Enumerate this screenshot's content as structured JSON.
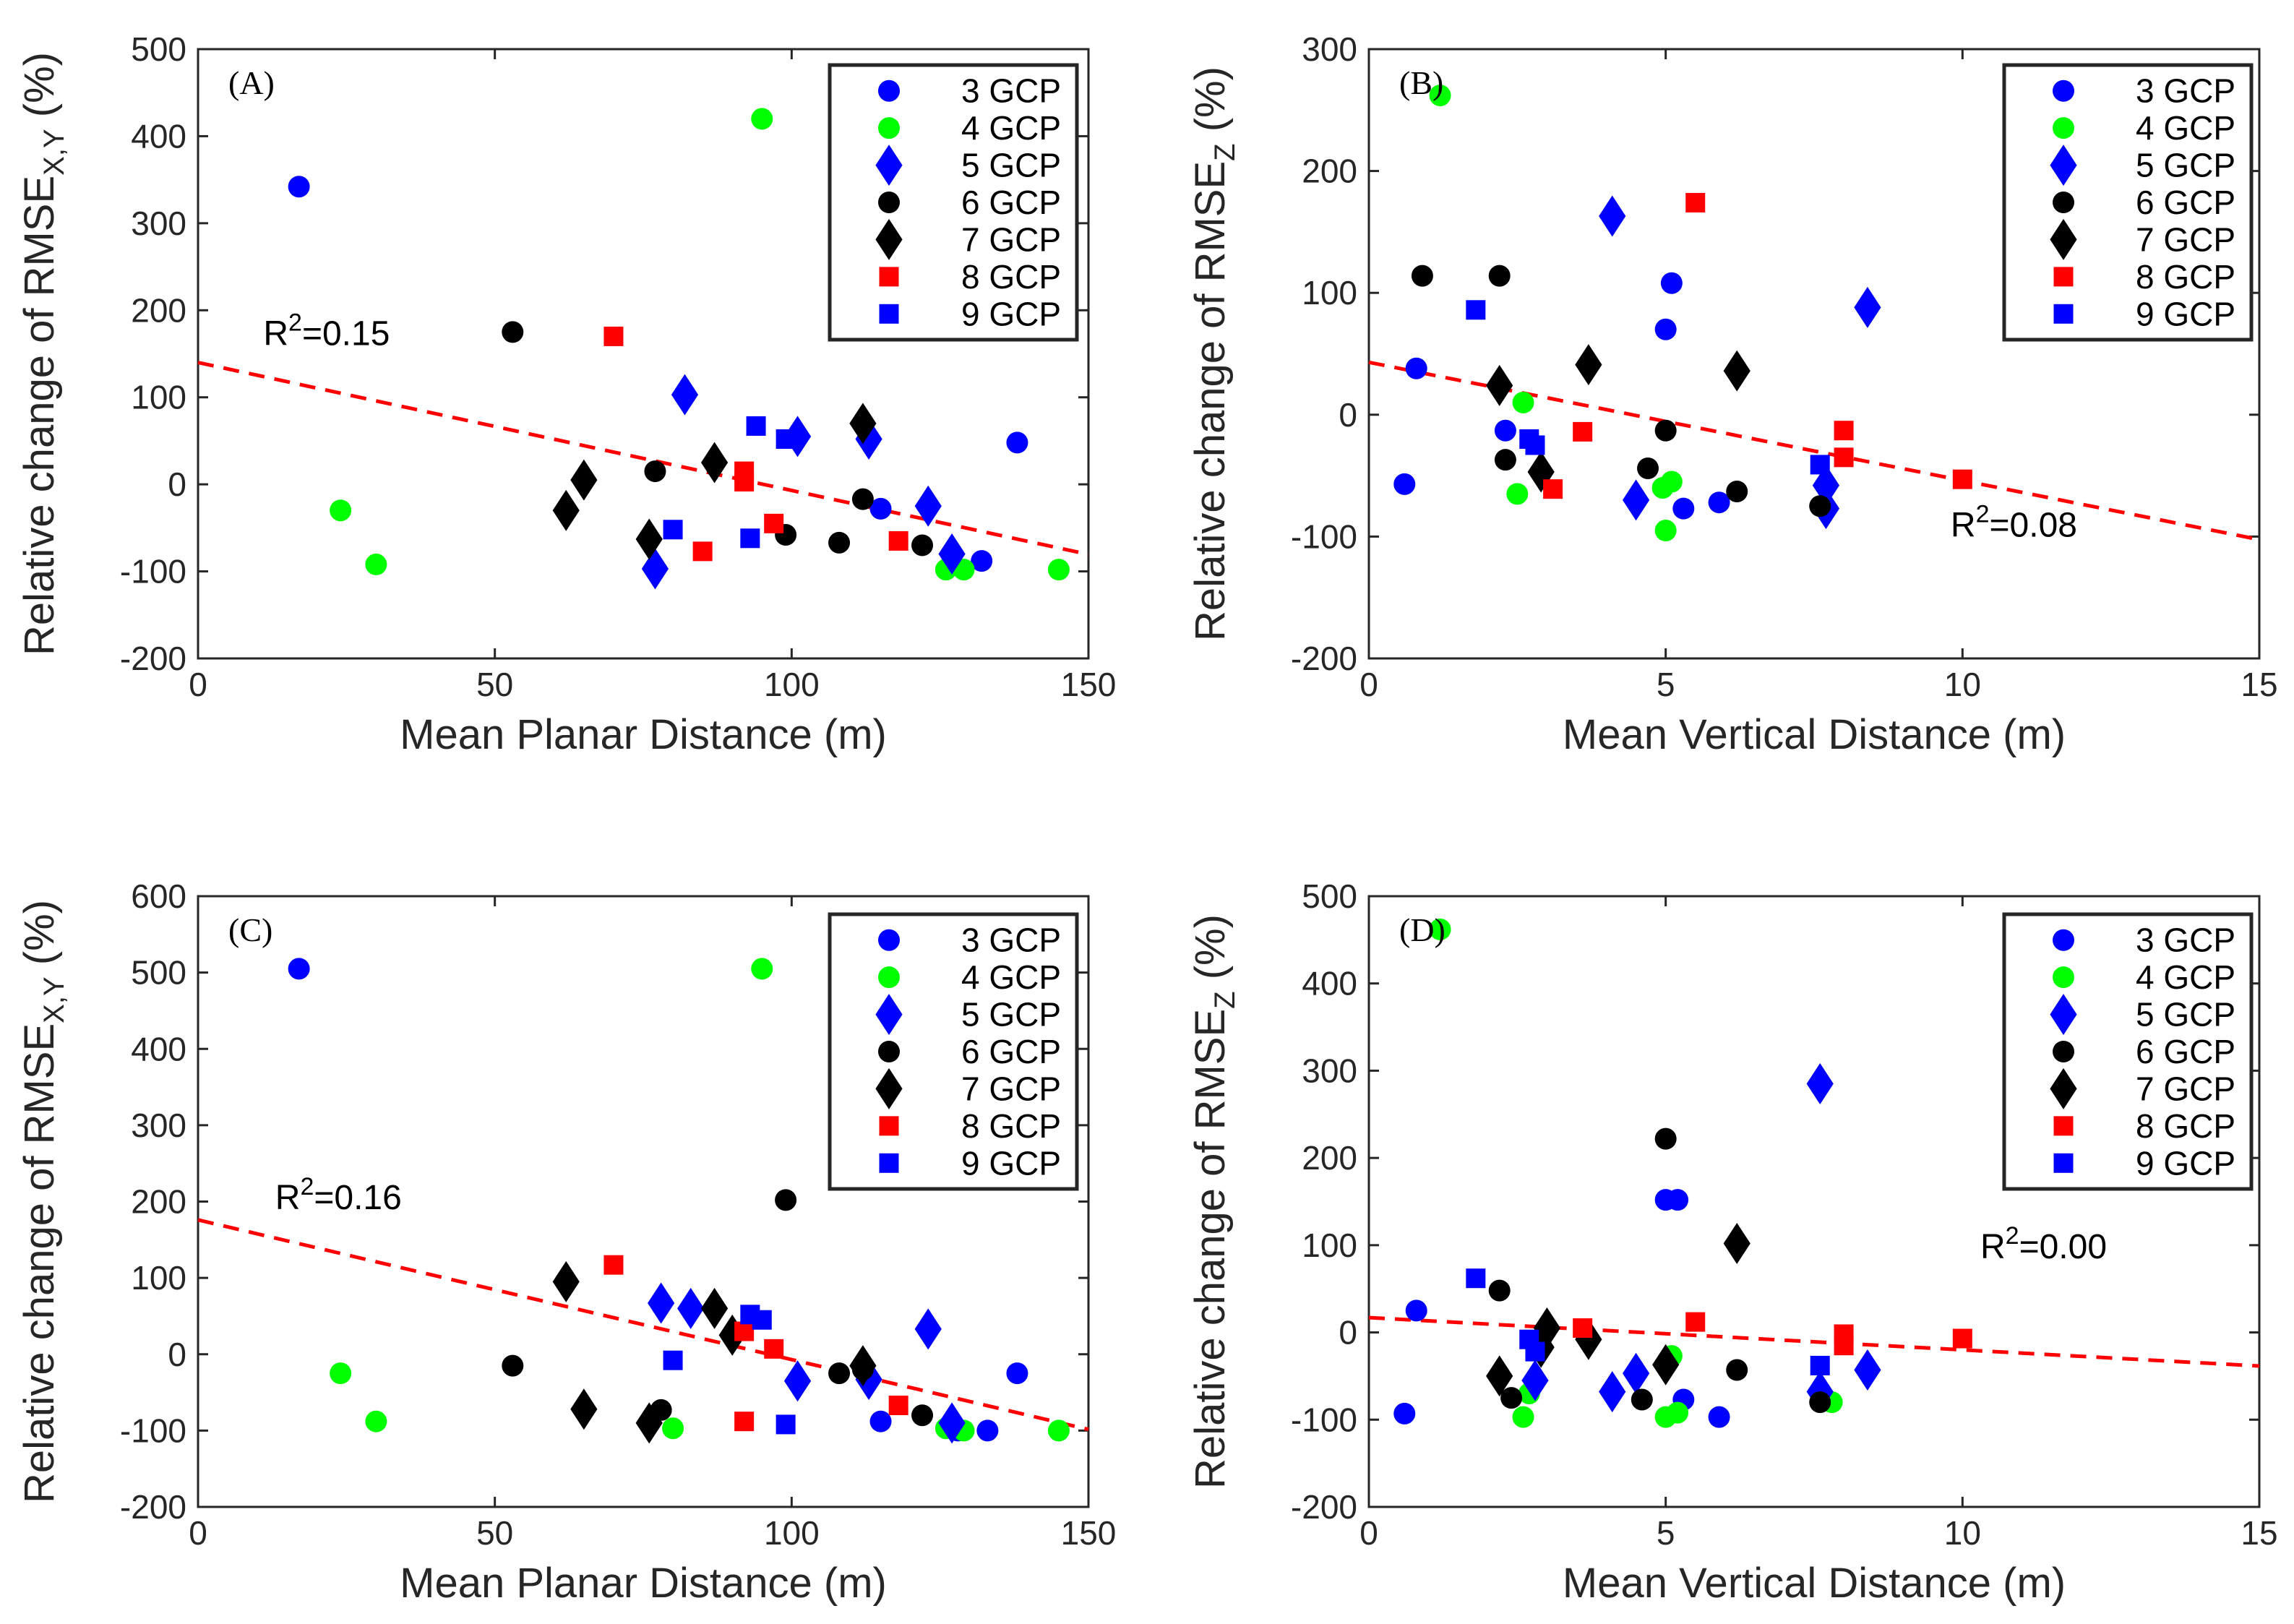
{
  "chart_data": [
    {
      "type": "scatter",
      "panel_label": "(A)",
      "xlabel": "Mean Planar Distance (m)",
      "ylabel_main": "Relative change of RMSE",
      "ylabel_sub": "X,Y",
      "ylabel_tail": " (%)",
      "xlim": [
        0,
        150
      ],
      "ylim": [
        -200,
        500
      ],
      "xticks": [
        0,
        50,
        100,
        150
      ],
      "yticks": [
        -200,
        -100,
        0,
        100,
        200,
        300,
        400,
        500
      ],
      "fit": {
        "slope": -1.47,
        "intercept": 140
      },
      "r2_label": "R",
      "r2_sup": "2",
      "r2_value": "=0.15",
      "r2_pos": [
        11,
        160
      ],
      "series": [
        {
          "name": "3 GCP",
          "marker": "circle",
          "color": "#0000ff",
          "points": [
            [
              17,
              342
            ],
            [
              115,
              -28
            ],
            [
              138,
              48
            ],
            [
              127,
              -82
            ],
            [
              132,
              -88
            ]
          ]
        },
        {
          "name": "4 GCP",
          "marker": "circle",
          "color": "#00ff00",
          "points": [
            [
              95,
              420
            ],
            [
              24,
              -30
            ],
            [
              30,
              -92
            ],
            [
              126,
              -98
            ],
            [
              129,
              -98
            ],
            [
              145,
              -98
            ]
          ]
        },
        {
          "name": "5 GCP",
          "marker": "diamond",
          "color": "#0000ff",
          "points": [
            [
              82,
              103
            ],
            [
              101,
              55
            ],
            [
              113,
              52
            ],
            [
              123,
              -25
            ],
            [
              127,
              -80
            ],
            [
              77,
              -97
            ]
          ]
        },
        {
          "name": "6 GCP",
          "marker": "circle",
          "color": "#000000",
          "points": [
            [
              53,
              175
            ],
            [
              77,
              15
            ],
            [
              99,
              -58
            ],
            [
              108,
              -67
            ],
            [
              112,
              -17
            ],
            [
              122,
              -70
            ]
          ]
        },
        {
          "name": "7 GCP",
          "marker": "diamond",
          "color": "#000000",
          "points": [
            [
              62,
              -30
            ],
            [
              65,
              5
            ],
            [
              76,
              -63
            ],
            [
              87,
              25
            ],
            [
              112,
              70
            ]
          ]
        },
        {
          "name": "8 GCP",
          "marker": "square",
          "color": "#ff0000",
          "points": [
            [
              70,
              170
            ],
            [
              85,
              -77
            ],
            [
              92,
              15
            ],
            [
              92,
              3
            ],
            [
              97,
              -45
            ],
            [
              118,
              -65
            ]
          ]
        },
        {
          "name": "9 GCP",
          "marker": "square",
          "color": "#0000ff",
          "points": [
            [
              80,
              -52
            ],
            [
              94,
              67
            ],
            [
              99,
              52
            ],
            [
              93,
              -62
            ]
          ]
        }
      ]
    },
    {
      "type": "scatter",
      "panel_label": "(B)",
      "xlabel": "Mean Vertical Distance (m)",
      "ylabel_main": "Relative change of RMSE",
      "ylabel_sub": "Z",
      "ylabel_tail": " (%)",
      "xlim": [
        0,
        15
      ],
      "ylim": [
        -200,
        300
      ],
      "xticks": [
        0,
        5,
        10,
        15
      ],
      "yticks": [
        -200,
        -100,
        0,
        100,
        200,
        300
      ],
      "fit": {
        "slope": -9.7,
        "intercept": 43
      },
      "r2_label": "R",
      "r2_sup": "2",
      "r2_value": "=0.08",
      "r2_pos": [
        9.8,
        -100
      ],
      "series": [
        {
          "name": "3 GCP",
          "marker": "circle",
          "color": "#0000ff",
          "points": [
            [
              0.6,
              -57
            ],
            [
              0.8,
              38
            ],
            [
              2.3,
              -13
            ],
            [
              5.0,
              70
            ],
            [
              5.1,
              108
            ],
            [
              5.3,
              -77
            ],
            [
              5.9,
              -72
            ]
          ]
        },
        {
          "name": "4 GCP",
          "marker": "circle",
          "color": "#00ff00",
          "points": [
            [
              1.2,
              262
            ],
            [
              2.6,
              10
            ],
            [
              2.5,
              -65
            ],
            [
              5.0,
              -95
            ],
            [
              5.1,
              -55
            ],
            [
              4.95,
              -60
            ]
          ]
        },
        {
          "name": "5 GCP",
          "marker": "diamond",
          "color": "#0000ff",
          "points": [
            [
              4.1,
              163
            ],
            [
              8.4,
              88
            ],
            [
              4.5,
              -70
            ],
            [
              7.7,
              -58
            ],
            [
              7.7,
              -77
            ]
          ]
        },
        {
          "name": "6 GCP",
          "marker": "circle",
          "color": "#000000",
          "points": [
            [
              0.9,
              114
            ],
            [
              2.2,
              114
            ],
            [
              2.3,
              -37
            ],
            [
              2.9,
              -47
            ],
            [
              4.7,
              -44
            ],
            [
              5.0,
              -13
            ],
            [
              6.2,
              -63
            ],
            [
              7.6,
              -75
            ]
          ]
        },
        {
          "name": "7 GCP",
          "marker": "diamond",
          "color": "#000000",
          "points": [
            [
              2.2,
              24
            ],
            [
              3.7,
              41
            ],
            [
              6.2,
              36
            ],
            [
              2.9,
              -47
            ]
          ]
        },
        {
          "name": "8 GCP",
          "marker": "square",
          "color": "#ff0000",
          "points": [
            [
              5.5,
              174
            ],
            [
              3.6,
              -14
            ],
            [
              3.1,
              -61
            ],
            [
              8.0,
              -13
            ],
            [
              8.0,
              -35
            ],
            [
              10.0,
              -53
            ]
          ]
        },
        {
          "name": "9 GCP",
          "marker": "square",
          "color": "#0000ff",
          "points": [
            [
              1.8,
              86
            ],
            [
              2.7,
              -20
            ],
            [
              2.8,
              -25
            ],
            [
              7.6,
              -41
            ]
          ]
        }
      ]
    },
    {
      "type": "scatter",
      "panel_label": "(C)",
      "xlabel": "Mean Planar Distance (m)",
      "ylabel_main": "Relative change of RMSE",
      "ylabel_sub": "X,Y",
      "ylabel_tail": " (%)",
      "xlim": [
        0,
        150
      ],
      "ylim": [
        -200,
        600
      ],
      "xticks": [
        0,
        50,
        100,
        150
      ],
      "yticks": [
        -200,
        -100,
        0,
        100,
        200,
        300,
        400,
        500,
        600
      ],
      "fit": {
        "slope": -1.83,
        "intercept": 176
      },
      "r2_label": "R",
      "r2_sup": "2",
      "r2_value": "=0.16",
      "r2_pos": [
        13,
        190
      ],
      "series": [
        {
          "name": "3 GCP",
          "marker": "circle",
          "color": "#0000ff",
          "points": [
            [
              17,
              505
            ],
            [
              115,
              -88
            ],
            [
              128,
              -100
            ],
            [
              133,
              -100
            ],
            [
              138,
              -25
            ]
          ]
        },
        {
          "name": "4 GCP",
          "marker": "circle",
          "color": "#00ff00",
          "points": [
            [
              95,
              505
            ],
            [
              24,
              -25
            ],
            [
              30,
              -88
            ],
            [
              80,
              -97
            ],
            [
              126,
              -97
            ],
            [
              129,
              -100
            ],
            [
              145,
              -100
            ]
          ]
        },
        {
          "name": "5 GCP",
          "marker": "diamond",
          "color": "#0000ff",
          "points": [
            [
              78,
              67
            ],
            [
              83,
              60
            ],
            [
              101,
              -35
            ],
            [
              113,
              -33
            ],
            [
              123,
              33
            ],
            [
              127,
              -90
            ]
          ]
        },
        {
          "name": "6 GCP",
          "marker": "circle",
          "color": "#000000",
          "points": [
            [
              53,
              -15
            ],
            [
              78,
              -73
            ],
            [
              99,
              202
            ],
            [
              108,
              -25
            ],
            [
              112,
              -20
            ],
            [
              122,
              -80
            ]
          ]
        },
        {
          "name": "7 GCP",
          "marker": "diamond",
          "color": "#000000",
          "points": [
            [
              62,
              95
            ],
            [
              65,
              -72
            ],
            [
              76,
              -90
            ],
            [
              87,
              60
            ],
            [
              90,
              25
            ],
            [
              112,
              -15
            ]
          ]
        },
        {
          "name": "8 GCP",
          "marker": "square",
          "color": "#ff0000",
          "points": [
            [
              70,
              117
            ],
            [
              92,
              -88
            ],
            [
              92,
              30
            ],
            [
              97,
              7
            ],
            [
              118,
              -67
            ]
          ]
        },
        {
          "name": "9 GCP",
          "marker": "square",
          "color": "#0000ff",
          "points": [
            [
              80,
              -8
            ],
            [
              93,
              52
            ],
            [
              95,
              45
            ],
            [
              99,
              -92
            ]
          ]
        }
      ]
    },
    {
      "type": "scatter",
      "panel_label": "(D)",
      "xlabel": "Mean Vertical Distance (m)",
      "ylabel_main": "Relative change of RMSE",
      "ylabel_sub": "Z",
      "ylabel_tail": " (%)",
      "xlim": [
        0,
        15
      ],
      "ylim": [
        -200,
        500
      ],
      "xticks": [
        0,
        5,
        10,
        15
      ],
      "yticks": [
        -200,
        -100,
        0,
        100,
        200,
        300,
        400,
        500
      ],
      "fit": {
        "slope": -3.7,
        "intercept": 17
      },
      "r2_label": "R",
      "r2_sup": "2",
      "r2_value": "=0.00",
      "r2_pos": [
        10.3,
        85
      ],
      "series": [
        {
          "name": "3 GCP",
          "marker": "circle",
          "color": "#0000ff",
          "points": [
            [
              0.6,
              -93
            ],
            [
              0.8,
              25
            ],
            [
              5.0,
              152
            ],
            [
              5.2,
              152
            ],
            [
              5.3,
              -77
            ],
            [
              5.9,
              -97
            ]
          ]
        },
        {
          "name": "4 GCP",
          "marker": "circle",
          "color": "#00ff00",
          "points": [
            [
              1.2,
              462
            ],
            [
              2.6,
              -97
            ],
            [
              2.7,
              -70
            ],
            [
              5.0,
              -97
            ],
            [
              5.1,
              -27
            ],
            [
              5.2,
              -92
            ],
            [
              7.8,
              -80
            ]
          ]
        },
        {
          "name": "5 GCP",
          "marker": "diamond",
          "color": "#0000ff",
          "points": [
            [
              7.6,
              285
            ],
            [
              2.8,
              -55
            ],
            [
              4.1,
              -68
            ],
            [
              4.5,
              -47
            ],
            [
              7.6,
              -68
            ],
            [
              8.4,
              -43
            ]
          ]
        },
        {
          "name": "6 GCP",
          "marker": "circle",
          "color": "#000000",
          "points": [
            [
              2.2,
              48
            ],
            [
              2.4,
              -75
            ],
            [
              4.6,
              -77
            ],
            [
              5.0,
              222
            ],
            [
              6.2,
              -43
            ],
            [
              7.6,
              -80
            ]
          ]
        },
        {
          "name": "7 GCP",
          "marker": "diamond",
          "color": "#000000",
          "points": [
            [
              2.2,
              -50
            ],
            [
              2.9,
              -17
            ],
            [
              3.0,
              5
            ],
            [
              3.7,
              -8
            ],
            [
              5.0,
              -37
            ],
            [
              6.2,
              102
            ]
          ]
        },
        {
          "name": "8 GCP",
          "marker": "square",
          "color": "#ff0000",
          "points": [
            [
              3.6,
              5
            ],
            [
              5.5,
              12
            ],
            [
              8.0,
              -2
            ],
            [
              8.0,
              -15
            ],
            [
              10.0,
              -7
            ]
          ]
        },
        {
          "name": "9 GCP",
          "marker": "square",
          "color": "#0000ff",
          "points": [
            [
              1.8,
              62
            ],
            [
              2.7,
              -8
            ],
            [
              2.8,
              -22
            ],
            [
              7.6,
              -38
            ]
          ]
        }
      ]
    }
  ]
}
